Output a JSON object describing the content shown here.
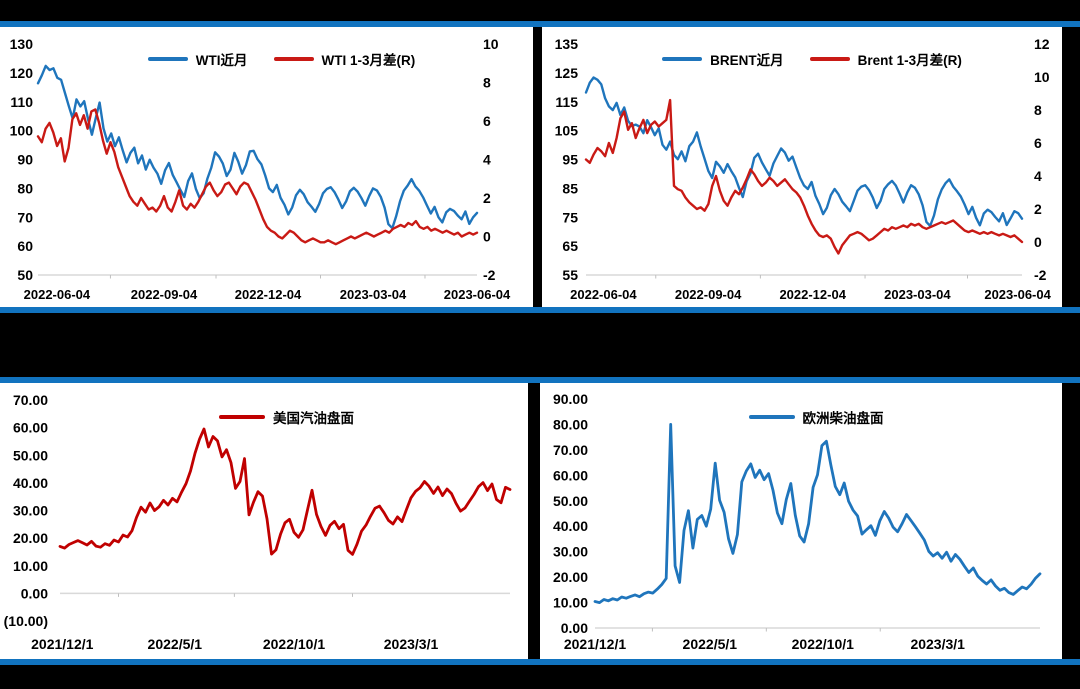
{
  "colors": {
    "background": "#000000",
    "divider_blue": "#1173BF",
    "panel_white": "#FFFFFF",
    "line_blue": "#1F75BC",
    "line_red_bright": "#C91A15",
    "line_red_dark": "#C00000",
    "negative_tick_red": "#FF0000",
    "axis_line_gray": "#D9D9D9"
  },
  "chart_data": [
    {
      "id": "wti",
      "type": "line",
      "title": "",
      "legend_position": "top-center",
      "grid": false,
      "left_axis": {
        "min": 50,
        "max": 130,
        "ticks": [
          [
            130,
            "130"
          ],
          [
            120,
            "120"
          ],
          [
            110,
            "110"
          ],
          [
            100,
            "100"
          ],
          [
            90,
            "90"
          ],
          [
            80,
            "80"
          ],
          [
            70,
            "70"
          ],
          [
            60,
            "60"
          ],
          [
            50,
            "50"
          ]
        ]
      },
      "right_axis": {
        "min": -2,
        "max": 10,
        "ticks": [
          [
            10,
            "10"
          ],
          [
            8,
            "8"
          ],
          [
            6,
            "6"
          ],
          [
            4,
            "4"
          ],
          [
            2,
            "2"
          ],
          [
            0,
            "0"
          ],
          [
            -2,
            "-2"
          ]
        ]
      },
      "x_ticks": [
        {
          "f": 0.043,
          "label": "2022-06-04"
        },
        {
          "f": 0.287,
          "label": "2022-09-04"
        },
        {
          "f": 0.524,
          "label": "2022-12-04"
        },
        {
          "f": 0.763,
          "label": "2023-03-04"
        },
        {
          "f": 1.0,
          "label": "2023-06-04"
        }
      ],
      "series": [
        {
          "name": "WTI近月",
          "axis": "left",
          "color": "#1F75BC",
          "values": [
            116.4,
            119.2,
            122.4,
            121.0,
            121.6,
            118.3,
            117.6,
            113.0,
            108.5,
            104.2,
            110.8,
            108.4,
            110.2,
            103.9,
            98.6,
            104.4,
            109.7,
            100.8,
            96.2,
            99.0,
            94.6,
            97.7,
            93.2,
            89.0,
            92.3,
            94.1,
            88.7,
            91.4,
            86.5,
            89.9,
            87.2,
            85.1,
            81.6,
            86.3,
            88.8,
            84.6,
            82.1,
            79.4,
            77.0,
            82.6,
            85.2,
            79.8,
            76.6,
            78.3,
            83.4,
            87.2,
            92.5,
            91.0,
            88.6,
            84.3,
            86.5,
            92.3,
            89.3,
            85.1,
            88.0,
            92.8,
            93.0,
            90.1,
            88.3,
            84.5,
            80.0,
            78.7,
            81.2,
            76.7,
            74.3,
            71.0,
            73.4,
            77.6,
            79.5,
            78.0,
            75.2,
            73.7,
            71.9,
            74.6,
            78.3,
            79.8,
            80.4,
            78.7,
            76.1,
            73.2,
            75.5,
            79.0,
            80.2,
            78.9,
            76.6,
            74.0,
            77.4,
            80.0,
            79.3,
            77.1,
            73.3,
            67.6,
            66.2,
            70.3,
            75.5,
            79.2,
            81.0,
            83.2,
            80.7,
            79.2,
            76.9,
            74.1,
            71.3,
            73.6,
            70.0,
            68.2,
            71.7,
            72.9,
            72.2,
            70.6,
            69.3,
            72.0,
            67.7,
            70.0,
            71.5
          ]
        },
        {
          "name": "WTI 1-3月差(R)",
          "axis": "right",
          "color": "#C91A15",
          "values": [
            5.2,
            4.9,
            5.6,
            5.9,
            5.4,
            4.7,
            5.1,
            3.9,
            4.6,
            6.1,
            6.4,
            5.8,
            6.3,
            5.6,
            6.5,
            6.6,
            5.9,
            5.0,
            4.3,
            4.9,
            4.4,
            3.6,
            3.1,
            2.6,
            2.1,
            1.8,
            1.6,
            2.0,
            1.7,
            1.4,
            1.5,
            1.3,
            1.6,
            2.1,
            1.5,
            1.3,
            1.8,
            2.4,
            1.6,
            1.4,
            1.7,
            1.5,
            1.8,
            2.2,
            2.6,
            2.8,
            2.4,
            2.1,
            2.3,
            2.7,
            2.8,
            2.5,
            2.2,
            2.6,
            2.8,
            2.7,
            2.3,
            1.9,
            1.4,
            0.9,
            0.5,
            0.3,
            0.2,
            0.0,
            -0.1,
            0.1,
            0.3,
            0.2,
            0.0,
            -0.2,
            -0.3,
            -0.2,
            -0.1,
            -0.2,
            -0.3,
            -0.3,
            -0.2,
            -0.3,
            -0.4,
            -0.3,
            -0.2,
            -0.1,
            0.0,
            -0.1,
            0.0,
            0.1,
            0.2,
            0.1,
            0.0,
            0.1,
            0.2,
            0.3,
            0.2,
            0.4,
            0.5,
            0.6,
            0.5,
            0.7,
            0.6,
            0.8,
            0.5,
            0.4,
            0.5,
            0.3,
            0.4,
            0.3,
            0.2,
            0.3,
            0.2,
            0.1,
            0.2,
            0.0,
            0.1,
            0.2,
            0.1,
            0.2
          ]
        }
      ]
    },
    {
      "id": "brent",
      "type": "line",
      "title": "",
      "legend_position": "top-center",
      "grid": false,
      "left_axis": {
        "min": 55,
        "max": 135,
        "ticks": [
          [
            135,
            "135"
          ],
          [
            125,
            "125"
          ],
          [
            115,
            "115"
          ],
          [
            105,
            "105"
          ],
          [
            95,
            "95"
          ],
          [
            85,
            "85"
          ],
          [
            75,
            "75"
          ],
          [
            65,
            "65"
          ],
          [
            55,
            "55"
          ]
        ]
      },
      "right_axis": {
        "min": -2,
        "max": 12,
        "ticks": [
          [
            12,
            "12"
          ],
          [
            10,
            "10"
          ],
          [
            8,
            "8"
          ],
          [
            6,
            "6"
          ],
          [
            4,
            "4"
          ],
          [
            2,
            "2"
          ],
          [
            0,
            "0"
          ],
          [
            -2,
            "-2"
          ]
        ]
      },
      "x_ticks": [
        {
          "f": 0.04,
          "label": "2022-06-04"
        },
        {
          "f": 0.28,
          "label": "2022-09-04"
        },
        {
          "f": 0.52,
          "label": "2022-12-04"
        },
        {
          "f": 0.76,
          "label": "2023-03-04"
        },
        {
          "f": 0.99,
          "label": "2023-06-04"
        }
      ],
      "series": [
        {
          "name": "BRENT近月",
          "axis": "left",
          "color": "#1F75BC",
          "values": [
            118.2,
            121.6,
            123.4,
            122.6,
            121.0,
            116.2,
            113.4,
            112.1,
            114.6,
            110.4,
            113.0,
            108.4,
            106.6,
            107.1,
            106.4,
            104.1,
            108.6,
            106.2,
            103.4,
            105.8,
            100.1,
            98.4,
            101.2,
            96.6,
            95.1,
            97.8,
            94.4,
            99.6,
            101.2,
            104.4,
            99.5,
            95.2,
            91.0,
            88.6,
            94.2,
            92.6,
            90.4,
            93.4,
            91.0,
            88.8,
            85.2,
            82.0,
            87.4,
            90.2,
            95.6,
            97.0,
            94.0,
            91.6,
            89.4,
            93.6,
            96.2,
            98.8,
            97.4,
            94.6,
            96.0,
            92.2,
            88.6,
            86.0,
            84.8,
            87.2,
            82.4,
            79.6,
            76.1,
            78.3,
            82.6,
            84.8,
            83.0,
            80.4,
            78.8,
            77.1,
            80.6,
            84.2,
            85.6,
            86.1,
            84.4,
            81.8,
            78.2,
            80.6,
            84.8,
            86.4,
            87.6,
            86.0,
            83.2,
            80.1,
            83.6,
            86.1,
            85.2,
            83.0,
            79.1,
            73.4,
            72.0,
            75.6,
            81.2,
            84.6,
            86.8,
            88.1,
            85.6,
            84.0,
            82.2,
            79.4,
            76.1,
            78.6,
            74.8,
            72.2,
            76.3,
            77.6,
            76.8,
            75.1,
            73.6,
            76.4,
            72.3,
            74.6,
            77.1,
            76.4,
            74.5
          ]
        },
        {
          "name": "Brent 1-3月差(R)",
          "axis": "right",
          "color": "#C91A15",
          "values": [
            5.0,
            4.8,
            5.3,
            5.7,
            5.5,
            5.2,
            6.0,
            5.4,
            6.3,
            7.5,
            7.9,
            6.8,
            7.2,
            6.3,
            6.9,
            7.4,
            6.6,
            7.1,
            7.3,
            7.0,
            7.2,
            7.4,
            8.6,
            3.4,
            3.2,
            3.1,
            2.7,
            2.4,
            2.2,
            2.0,
            2.1,
            1.9,
            2.3,
            3.4,
            4.0,
            3.1,
            2.5,
            2.2,
            2.7,
            3.1,
            2.9,
            3.3,
            3.8,
            4.4,
            4.1,
            3.7,
            3.4,
            3.6,
            3.9,
            3.7,
            3.4,
            3.6,
            3.8,
            3.5,
            3.2,
            3.0,
            2.7,
            2.2,
            1.6,
            1.1,
            0.7,
            0.4,
            0.3,
            0.4,
            0.2,
            -0.3,
            -0.7,
            -0.2,
            0.1,
            0.4,
            0.5,
            0.6,
            0.5,
            0.3,
            0.1,
            0.2,
            0.4,
            0.6,
            0.8,
            0.7,
            0.9,
            0.8,
            0.9,
            1.0,
            0.9,
            1.1,
            1.0,
            1.1,
            0.9,
            0.8,
            0.9,
            1.0,
            1.1,
            1.2,
            1.1,
            1.2,
            1.3,
            1.1,
            0.9,
            0.7,
            0.6,
            0.7,
            0.6,
            0.5,
            0.6,
            0.5,
            0.6,
            0.5,
            0.4,
            0.5,
            0.4,
            0.3,
            0.4,
            0.2,
            0.0
          ]
        }
      ]
    },
    {
      "id": "gasoline",
      "type": "line",
      "title": "",
      "legend_position": "top-center",
      "grid": false,
      "left_axis": {
        "min": -10,
        "max": 70,
        "ticks": [
          [
            70,
            "70.00"
          ],
          [
            60,
            "60.00"
          ],
          [
            50,
            "50.00"
          ],
          [
            40,
            "40.00"
          ],
          [
            30,
            "30.00"
          ],
          [
            20,
            "20.00"
          ],
          [
            10,
            "10.00"
          ],
          [
            0,
            "0.00"
          ],
          [
            -10,
            "(10.00)",
            "#FF0000"
          ]
        ]
      },
      "x_ticks": [
        {
          "f": 0.005,
          "label": "2021/12/1"
        },
        {
          "f": 0.255,
          "label": "2022/5/1"
        },
        {
          "f": 0.52,
          "label": "2022/10/1"
        },
        {
          "f": 0.78,
          "label": "2023/3/1"
        }
      ],
      "series": [
        {
          "name": "美国汽油盘面",
          "axis": "left",
          "color": "#C00000",
          "values": [
            17.0,
            16.4,
            17.7,
            18.4,
            19.1,
            18.3,
            17.5,
            18.8,
            17.1,
            16.7,
            18.0,
            17.4,
            19.3,
            18.6,
            21.1,
            20.4,
            22.7,
            27.5,
            31.2,
            29.4,
            32.7,
            30.0,
            31.3,
            33.7,
            32.0,
            34.4,
            33.1,
            36.6,
            39.7,
            44.3,
            50.7,
            55.8,
            59.5,
            53.0,
            56.8,
            55.2,
            49.4,
            52.0,
            47.3,
            38.0,
            40.5,
            48.8,
            28.4,
            33.0,
            36.8,
            35.2,
            27.0,
            14.2,
            15.8,
            21.4,
            25.6,
            26.8,
            22.1,
            20.3,
            23.0,
            30.2,
            37.3,
            28.6,
            24.2,
            21.0,
            24.6,
            26.1,
            23.4,
            25.0,
            15.6,
            14.1,
            17.8,
            22.5,
            24.7,
            27.9,
            30.8,
            31.6,
            29.2,
            26.4,
            25.1,
            27.7,
            26.0,
            30.4,
            34.6,
            36.9,
            38.2,
            40.5,
            38.8,
            36.2,
            38.5,
            35.4,
            37.8,
            36.1,
            32.6,
            29.8,
            30.9,
            33.4,
            35.8,
            38.6,
            40.1,
            37.2,
            39.6,
            34.0,
            32.8,
            38.4,
            37.6
          ]
        }
      ]
    },
    {
      "id": "diesel",
      "type": "line",
      "title": "",
      "legend_position": "top-center",
      "grid": false,
      "left_axis": {
        "min": 0,
        "max": 90,
        "ticks": [
          [
            90,
            "90.00"
          ],
          [
            80,
            "80.00"
          ],
          [
            70,
            "70.00"
          ],
          [
            60,
            "60.00"
          ],
          [
            50,
            "50.00"
          ],
          [
            40,
            "40.00"
          ],
          [
            30,
            "30.00"
          ],
          [
            20,
            "20.00"
          ],
          [
            10,
            "10.00"
          ],
          [
            0,
            "0.00"
          ]
        ]
      },
      "x_ticks": [
        {
          "f": 0.0,
          "label": "2021/12/1"
        },
        {
          "f": 0.258,
          "label": "2022/5/1"
        },
        {
          "f": 0.512,
          "label": "2022/10/1"
        },
        {
          "f": 0.77,
          "label": "2023/3/1"
        }
      ],
      "series": [
        {
          "name": "欧洲柴油盘面",
          "axis": "left",
          "color": "#1F75BC",
          "values": [
            10.4,
            10.0,
            11.2,
            10.7,
            11.5,
            11.0,
            12.2,
            11.7,
            12.4,
            13.0,
            12.3,
            13.5,
            14.1,
            13.7,
            15.3,
            17.1,
            19.5,
            80.0,
            24.4,
            17.9,
            38.3,
            46.1,
            31.4,
            42.7,
            44.2,
            40.0,
            46.7,
            64.8,
            50.2,
            45.5,
            35.1,
            29.3,
            36.7,
            57.4,
            61.7,
            64.5,
            59.2,
            62.0,
            58.3,
            60.7,
            54.1,
            45.2,
            41.0,
            50.5,
            56.8,
            44.3,
            36.2,
            33.8,
            40.9,
            55.3,
            60.2,
            71.7,
            73.4,
            64.0,
            55.6,
            52.4,
            57.0,
            49.8,
            46.3,
            44.0,
            36.9,
            38.6,
            40.2,
            36.4,
            42.1,
            45.8,
            43.2,
            39.6,
            37.8,
            41.0,
            44.6,
            42.3,
            39.8,
            37.2,
            34.6,
            30.1,
            28.3,
            29.6,
            27.4,
            29.8,
            26.2,
            28.9,
            27.0,
            24.3,
            21.8,
            23.6,
            20.4,
            18.7,
            17.3,
            18.9,
            16.5,
            14.8,
            15.6,
            13.9,
            13.2,
            14.7,
            16.1,
            15.4,
            17.2,
            19.6,
            21.3
          ]
        }
      ]
    }
  ]
}
